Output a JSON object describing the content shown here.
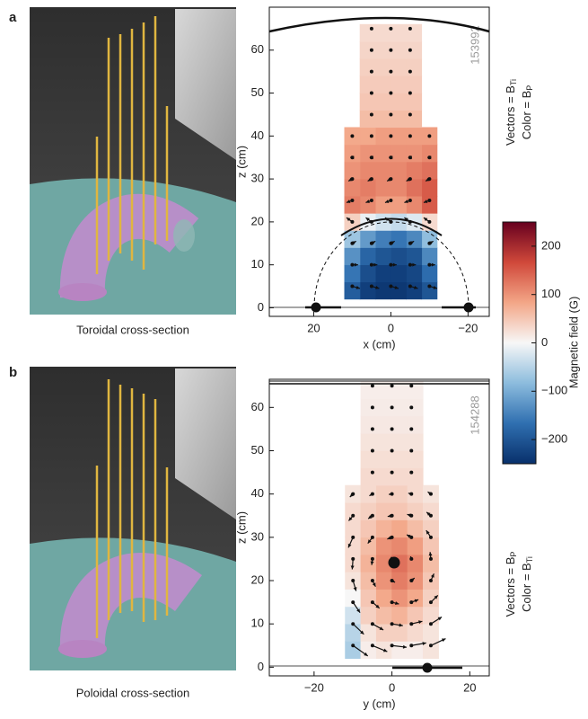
{
  "labels": [
    "a",
    "b"
  ],
  "captions": [
    "Toroidal cross-section",
    "Poloidal cross-section"
  ],
  "colorbar": {
    "label": "Magnetic field (G)",
    "lim": [
      -250,
      250
    ],
    "ticks": [
      {
        "value": -200,
        "label": "−200"
      },
      {
        "value": -100,
        "label": "−100"
      },
      0,
      100,
      200
    ],
    "colors": [
      "#08306b",
      "#2f6fb0",
      "#8cbcdd",
      "#f7f7f7",
      "#f3a687",
      "#d0483a",
      "#67001f"
    ]
  },
  "chart_data": [
    {
      "type": "vector_field",
      "shot": "153992",
      "annotations": [
        {
          "text": "Vectors = B",
          "sub": "Ti"
        },
        {
          "text": "Color = B",
          "sub": "P"
        }
      ],
      "xlabel": "x (cm)",
      "ylabel": "z (cm)",
      "xlim": [
        31.5,
        -25.5
      ],
      "ylim": [
        -2,
        70
      ],
      "xticks": [
        20,
        0,
        {
          "value": -20,
          "label": "−20"
        }
      ],
      "yticks": [
        0,
        10,
        20,
        30,
        40,
        50,
        60
      ],
      "field": {
        "x": [
          -10,
          -6,
          -2,
          2,
          6,
          10
        ],
        "z": [
          4,
          8,
          12,
          16,
          20,
          24,
          28,
          32,
          36,
          40,
          44,
          48,
          52,
          56,
          60,
          64
        ],
        "values": [
          [
            -200,
            -230,
            -240,
            -240,
            -230,
            -190
          ],
          [
            -170,
            -220,
            -230,
            -230,
            -210,
            -160
          ],
          [
            -140,
            -200,
            -210,
            -200,
            -180,
            -130
          ],
          [
            -80,
            -140,
            -160,
            -150,
            -120,
            -70
          ],
          [
            30,
            -20,
            -40,
            -30,
            -10,
            40
          ],
          [
            150,
            110,
            90,
            90,
            110,
            120
          ],
          [
            150,
            130,
            110,
            110,
            120,
            110
          ],
          [
            130,
            120,
            110,
            110,
            110,
            100
          ],
          [
            110,
            100,
            100,
            100,
            100,
            90
          ],
          [
            90,
            90,
            90,
            90,
            80,
            80
          ],
          [
            null,
            60,
            60,
            60,
            60,
            null
          ],
          [
            null,
            50,
            50,
            50,
            50,
            null
          ],
          [
            null,
            45,
            45,
            45,
            45,
            null
          ],
          [
            null,
            40,
            40,
            40,
            40,
            null
          ],
          [
            null,
            35,
            35,
            35,
            35,
            null
          ],
          [
            null,
            30,
            30,
            30,
            30,
            null
          ]
        ]
      },
      "vectors": [
        [
          -10,
          5,
          -2,
          -0.5
        ],
        [
          -5,
          5,
          -2,
          -0.5
        ],
        [
          0,
          5,
          -2,
          -0.5
        ],
        [
          5,
          5,
          -2,
          -0.5
        ],
        [
          10,
          5,
          -2,
          -0.5
        ],
        [
          -10,
          10,
          -1.5,
          0
        ],
        [
          -5,
          10,
          -1.5,
          0
        ],
        [
          0,
          10,
          -1.5,
          0
        ],
        [
          5,
          10,
          -1.5,
          0
        ],
        [
          10,
          10,
          -1.5,
          0
        ],
        [
          -10,
          15,
          -1,
          0.5
        ],
        [
          -5,
          15,
          -1,
          0.5
        ],
        [
          0,
          15,
          -1,
          0.5
        ],
        [
          5,
          15,
          -1,
          0.5
        ],
        [
          10,
          15,
          -1,
          0.5
        ],
        [
          -10,
          20,
          1.5,
          1
        ],
        [
          -5,
          20,
          1.5,
          1
        ],
        [
          0,
          20,
          1.5,
          1
        ],
        [
          5,
          20,
          1.5,
          1
        ],
        [
          10,
          20,
          1.5,
          1
        ],
        [
          -10,
          25,
          1.5,
          -0.5
        ],
        [
          -5,
          25,
          1.5,
          -0.5
        ],
        [
          0,
          25,
          1.5,
          -0.5
        ],
        [
          5,
          25,
          1.5,
          -0.5
        ],
        [
          10,
          25,
          1.5,
          -0.5
        ],
        [
          -10,
          30,
          1,
          -0.5
        ],
        [
          -5,
          30,
          1,
          -0.5
        ],
        [
          0,
          30,
          1,
          -0.5
        ],
        [
          5,
          30,
          1,
          -0.5
        ],
        [
          10,
          30,
          1,
          -0.5
        ],
        [
          -10,
          35,
          0.5,
          0
        ],
        [
          -5,
          35,
          0.5,
          0
        ],
        [
          0,
          35,
          0.5,
          0
        ],
        [
          5,
          35,
          0.5,
          0
        ],
        [
          10,
          35,
          0.5,
          0
        ],
        [
          -10,
          40,
          0.3,
          0
        ],
        [
          -5,
          40,
          0.3,
          0
        ],
        [
          0,
          40,
          0.3,
          0
        ],
        [
          5,
          40,
          0.3,
          0
        ],
        [
          10,
          40,
          0.3,
          0
        ],
        [
          -5,
          45,
          0,
          0
        ],
        [
          0,
          45,
          0,
          0
        ],
        [
          5,
          45,
          0,
          0
        ],
        [
          -5,
          50,
          0,
          0
        ],
        [
          0,
          50,
          0,
          0
        ],
        [
          5,
          50,
          0,
          0
        ],
        [
          -5,
          55,
          0,
          0
        ],
        [
          0,
          55,
          0,
          0
        ],
        [
          5,
          55,
          0,
          0
        ],
        [
          -5,
          60,
          0,
          0
        ],
        [
          0,
          60,
          0,
          0
        ],
        [
          5,
          60,
          0,
          0
        ],
        [
          -5,
          65,
          0,
          0
        ],
        [
          0,
          65,
          0,
          0
        ],
        [
          5,
          65,
          0,
          0
        ]
      ]
    },
    {
      "type": "vector_field",
      "shot": "154288",
      "annotations": [
        {
          "text": "Vectors = B",
          "sub": "P"
        },
        {
          "text": "Color = B",
          "sub": "Ti"
        }
      ],
      "xlabel": "y (cm)",
      "ylabel": "z (cm)",
      "xlim": [
        -31.5,
        25
      ],
      "ylim": [
        -2,
        66.5
      ],
      "xticks": [
        {
          "value": -20,
          "label": "−20"
        },
        0,
        20
      ],
      "yticks": [
        0,
        10,
        20,
        30,
        40,
        50,
        60
      ],
      "field": {
        "x": [
          -10,
          -6,
          -2,
          2,
          6,
          10
        ],
        "z": [
          4,
          8,
          12,
          16,
          20,
          24,
          28,
          32,
          36,
          40,
          44,
          48,
          52,
          56,
          60,
          64
        ],
        "values": [
          [
            -60,
            10,
            20,
            10,
            10,
            20
          ],
          [
            -50,
            20,
            40,
            40,
            30,
            20
          ],
          [
            -30,
            40,
            60,
            70,
            50,
            30
          ],
          [
            0,
            50,
            80,
            100,
            80,
            40
          ],
          [
            20,
            60,
            100,
            120,
            100,
            50
          ],
          [
            30,
            70,
            110,
            130,
            110,
            60
          ],
          [
            30,
            60,
            100,
            110,
            90,
            50
          ],
          [
            30,
            50,
            70,
            80,
            60,
            40
          ],
          [
            30,
            40,
            50,
            50,
            40,
            30
          ],
          [
            20,
            30,
            40,
            40,
            30,
            20
          ],
          [
            null,
            30,
            30,
            30,
            30,
            null
          ],
          [
            null,
            25,
            25,
            25,
            25,
            null
          ],
          [
            null,
            20,
            20,
            20,
            20,
            null
          ],
          [
            null,
            15,
            15,
            15,
            15,
            null
          ],
          [
            null,
            12,
            12,
            12,
            12,
            null
          ],
          [
            null,
            10,
            10,
            10,
            10,
            null
          ]
        ]
      },
      "vectors": [
        [
          -10,
          5,
          3.8,
          -2.4
        ],
        [
          -5,
          5,
          3.8,
          -1.4
        ],
        [
          0,
          5,
          3.8,
          -0.4
        ],
        [
          5,
          5,
          3.8,
          0.6
        ],
        [
          10,
          5,
          3.8,
          1.6
        ],
        [
          -10,
          10,
          2.8,
          -2.4
        ],
        [
          -5,
          10,
          2.8,
          -1.4
        ],
        [
          0,
          10,
          2.8,
          -0.4
        ],
        [
          5,
          10,
          2.8,
          0.6
        ],
        [
          10,
          10,
          2.8,
          1.6
        ],
        [
          -10,
          15,
          1.8,
          -2.4
        ],
        [
          -5,
          15,
          1.8,
          -1.4
        ],
        [
          0,
          15,
          1.8,
          -0.4
        ],
        [
          5,
          15,
          1.8,
          0.6
        ],
        [
          10,
          15,
          1.8,
          1.6
        ],
        [
          -10,
          20,
          0.8,
          -2.4
        ],
        [
          -5,
          20,
          0.8,
          -1.4
        ],
        [
          0,
          20,
          0.8,
          -0.4
        ],
        [
          5,
          20,
          0.8,
          0.6
        ],
        [
          10,
          20,
          0.8,
          1.6
        ],
        [
          -10,
          25,
          -0.2,
          -2.4
        ],
        [
          -5,
          25,
          -0.2,
          -1.4
        ],
        [
          0,
          25,
          -0.2,
          -0.4
        ],
        [
          5,
          25,
          -0.2,
          0.6
        ],
        [
          10,
          25,
          -0.2,
          1.6
        ],
        [
          -10,
          30,
          -1.2,
          -2.4
        ],
        [
          -5,
          30,
          -1.2,
          -1.4
        ],
        [
          0,
          30,
          -1.2,
          -0.4
        ],
        [
          5,
          30,
          -1.2,
          0.6
        ],
        [
          10,
          30,
          -1.2,
          1.6
        ],
        [
          -10,
          35,
          -1.1,
          -1.2
        ],
        [
          -5,
          35,
          -1.1,
          -0.7
        ],
        [
          0,
          35,
          -1.1,
          -0.2
        ],
        [
          5,
          35,
          -1.1,
          0.3
        ],
        [
          10,
          35,
          -1.1,
          0.8
        ],
        [
          -10,
          40,
          -0.8,
          -0.7
        ],
        [
          -5,
          40,
          -0.8,
          -0.4
        ],
        [
          0,
          40,
          -0.8,
          -0.1
        ],
        [
          5,
          40,
          -0.8,
          0.2
        ],
        [
          10,
          40,
          -0.8,
          0.5
        ],
        [
          -5,
          45,
          0,
          0
        ],
        [
          0,
          45,
          0,
          0
        ],
        [
          5,
          45,
          0,
          0
        ],
        [
          -5,
          50,
          0,
          0
        ],
        [
          0,
          50,
          0,
          0
        ],
        [
          5,
          50,
          0,
          0
        ],
        [
          -5,
          55,
          0,
          0
        ],
        [
          0,
          55,
          0,
          0
        ],
        [
          5,
          55,
          0,
          0
        ],
        [
          -5,
          60,
          0,
          0
        ],
        [
          0,
          60,
          0,
          0
        ],
        [
          5,
          60,
          0,
          0
        ],
        [
          -5,
          65,
          0,
          0
        ],
        [
          0,
          65,
          0,
          0
        ],
        [
          5,
          65,
          0,
          0
        ]
      ]
    }
  ]
}
